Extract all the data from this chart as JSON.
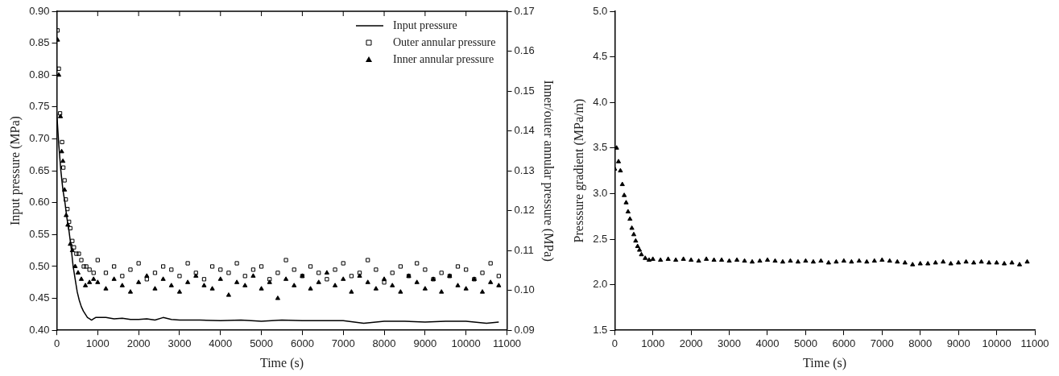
{
  "chart_data": [
    {
      "type": "scatter",
      "xlabel": "Time (s)",
      "ylabel": "Input pressure (MPa)",
      "y2label": "Inner/outer annular pressure (MPa)",
      "xlim": [
        0,
        11000
      ],
      "xticks": [
        0,
        1000,
        2000,
        3000,
        4000,
        5000,
        6000,
        7000,
        8000,
        9000,
        10000,
        11000
      ],
      "ylim": [
        0.4,
        0.9
      ],
      "yticks": [
        {
          "value": 0.4,
          "label": "0.40"
        },
        {
          "value": 0.45,
          "label": "0.45"
        },
        {
          "value": 0.5,
          "label": "0.50"
        },
        {
          "value": 0.55,
          "label": "0.55"
        },
        {
          "value": 0.6,
          "label": "0.60"
        },
        {
          "value": 0.65,
          "label": "0.65"
        },
        {
          "value": 0.7,
          "label": "0.70"
        },
        {
          "value": 0.75,
          "label": "0.75"
        },
        {
          "value": 0.8,
          "label": "0.80"
        },
        {
          "value": 0.85,
          "label": "0.85"
        },
        {
          "value": 0.9,
          "label": "0.90"
        }
      ],
      "y2lim": [
        0.09,
        0.17
      ],
      "y2ticks": [
        {
          "value": 0.09,
          "label": "0.09"
        },
        {
          "value": 0.1,
          "label": "0.10"
        },
        {
          "value": 0.11,
          "label": "0.11"
        },
        {
          "value": 0.12,
          "label": "0.12"
        },
        {
          "value": 0.13,
          "label": "0.13"
        },
        {
          "value": 0.14,
          "label": "0.14"
        },
        {
          "value": 0.15,
          "label": "0.15"
        },
        {
          "value": 0.16,
          "label": "0.16"
        },
        {
          "value": 0.17,
          "label": "0.17"
        }
      ],
      "legend": "top right",
      "grid": false,
      "series": [
        {
          "name": "Input pressure",
          "type": "line",
          "marker": "none",
          "color": "#000000",
          "x": [
            0,
            50,
            100,
            150,
            200,
            250,
            300,
            350,
            400,
            450,
            500,
            550,
            600,
            650,
            700,
            750,
            800,
            850,
            900,
            950,
            1000,
            1200,
            1400,
            1600,
            1800,
            2000,
            2200,
            2400,
            2600,
            2800,
            3000,
            3500,
            4000,
            4500,
            5000,
            5500,
            6000,
            6500,
            7000,
            7500,
            8000,
            8500,
            9000,
            9500,
            10000,
            10500,
            10800
          ],
          "values": [
            0.74,
            0.69,
            0.65,
            0.62,
            0.6,
            0.575,
            0.555,
            0.53,
            0.5,
            0.48,
            0.46,
            0.447,
            0.437,
            0.43,
            0.425,
            0.42,
            0.418,
            0.416,
            0.418,
            0.42,
            0.42,
            0.42,
            0.418,
            0.419,
            0.417,
            0.417,
            0.418,
            0.416,
            0.42,
            0.417,
            0.416,
            0.416,
            0.415,
            0.416,
            0.414,
            0.416,
            0.415,
            0.415,
            0.415,
            0.411,
            0.414,
            0.414,
            0.413,
            0.414,
            0.414,
            0.411,
            0.413
          ]
        },
        {
          "name": "Outer annular pressure",
          "marker": "square",
          "axis": "y2",
          "color": "#000000",
          "x": [
            20,
            50,
            80,
            130,
            160,
            190,
            220,
            260,
            300,
            330,
            380,
            420,
            480,
            540,
            600,
            660,
            720,
            800,
            900,
            1000,
            1200,
            1400,
            1600,
            1800,
            2000,
            2200,
            2400,
            2600,
            2800,
            3000,
            3200,
            3400,
            3600,
            3800,
            4000,
            4200,
            4400,
            4600,
            4800,
            5000,
            5200,
            5400,
            5600,
            5800,
            6000,
            6200,
            6400,
            6600,
            6800,
            7000,
            7200,
            7400,
            7600,
            7800,
            8000,
            8200,
            8400,
            8600,
            8800,
            9000,
            9200,
            9400,
            9600,
            9800,
            10000,
            10200,
            10400,
            10600,
            10800
          ],
          "values": [
            0.1652,
            0.1556,
            0.1444,
            0.1372,
            0.1308,
            0.1276,
            0.1228,
            0.1204,
            0.1172,
            0.1156,
            0.1124,
            0.1108,
            0.1092,
            0.1092,
            0.1076,
            0.106,
            0.106,
            0.1052,
            0.1044,
            0.1076,
            0.1044,
            0.106,
            0.1036,
            0.1052,
            0.1068,
            0.1028,
            0.1044,
            0.106,
            0.1052,
            0.1036,
            0.1068,
            0.1044,
            0.1028,
            0.106,
            0.1052,
            0.1044,
            0.1068,
            0.1036,
            0.1052,
            0.106,
            0.1028,
            0.1044,
            0.1076,
            0.1052,
            0.1036,
            0.106,
            0.1044,
            0.1028,
            0.1052,
            0.1068,
            0.1036,
            0.1044,
            0.1076,
            0.1052,
            0.102,
            0.1044,
            0.106,
            0.1036,
            0.1068,
            0.1052,
            0.1028,
            0.1044,
            0.1036,
            0.106,
            0.1052,
            0.1028,
            0.1044,
            0.1068,
            0.1036
          ]
        },
        {
          "name": "Inner annular pressure",
          "marker": "triangle",
          "axis": "y2",
          "color": "#000000",
          "x": [
            20,
            50,
            90,
            120,
            150,
            190,
            230,
            270,
            330,
            380,
            450,
            520,
            600,
            700,
            800,
            900,
            1000,
            1200,
            1400,
            1600,
            1800,
            2000,
            2200,
            2400,
            2600,
            2800,
            3000,
            3200,
            3400,
            3600,
            3800,
            4000,
            4200,
            4400,
            4600,
            4800,
            5000,
            5200,
            5400,
            5600,
            5800,
            6000,
            6200,
            6400,
            6600,
            6800,
            7000,
            7200,
            7400,
            7600,
            7800,
            8000,
            8200,
            8400,
            8600,
            8800,
            9000,
            9200,
            9400,
            9600,
            9800,
            10000,
            10200,
            10400,
            10600,
            10800
          ],
          "values": [
            0.1628,
            0.154,
            0.1436,
            0.1348,
            0.1324,
            0.1252,
            0.1188,
            0.1164,
            0.1116,
            0.11,
            0.106,
            0.1044,
            0.1028,
            0.1012,
            0.102,
            0.1028,
            0.102,
            0.1004,
            0.1028,
            0.1012,
            0.0996,
            0.102,
            0.1036,
            0.1004,
            0.1028,
            0.1012,
            0.0996,
            0.102,
            0.1036,
            0.1012,
            0.1004,
            0.1028,
            0.0988,
            0.102,
            0.1012,
            0.1036,
            0.1004,
            0.102,
            0.098,
            0.1028,
            0.1012,
            0.1036,
            0.1004,
            0.102,
            0.1044,
            0.1012,
            0.1028,
            0.0996,
            0.1036,
            0.102,
            0.1004,
            0.1028,
            0.1012,
            0.0996,
            0.1036,
            0.102,
            0.1004,
            0.1028,
            0.0996,
            0.1036,
            0.1012,
            0.1004,
            0.1028,
            0.0996,
            0.102,
            0.1012
          ]
        }
      ]
    },
    {
      "type": "scatter",
      "xlabel": "Time (s)",
      "ylabel": "Presssure gradient (MPa/m)",
      "xlim": [
        0,
        11000
      ],
      "xticks": [
        0,
        1000,
        2000,
        3000,
        4000,
        5000,
        6000,
        7000,
        8000,
        9000,
        10000,
        11000
      ],
      "ylim": [
        1.5,
        5.0
      ],
      "yticks": [
        {
          "value": 1.5,
          "label": "1.5"
        },
        {
          "value": 2.0,
          "label": "2.0"
        },
        {
          "value": 2.5,
          "label": "2.5"
        },
        {
          "value": 3.0,
          "label": "3.0"
        },
        {
          "value": 3.5,
          "label": "3.5"
        },
        {
          "value": 4.0,
          "label": "4.0"
        },
        {
          "value": 4.5,
          "label": "4.5"
        },
        {
          "value": 5.0,
          "label": "5.0"
        }
      ],
      "grid": false,
      "marker": "triangle",
      "series": [
        {
          "color": "#000000",
          "x": [
            0,
            50,
            100,
            150,
            200,
            250,
            300,
            350,
            400,
            450,
            500,
            550,
            600,
            650,
            700,
            800,
            900,
            1000,
            1200,
            1400,
            1600,
            1800,
            2000,
            2200,
            2400,
            2600,
            2800,
            3000,
            3200,
            3400,
            3600,
            3800,
            4000,
            4200,
            4400,
            4600,
            4800,
            5000,
            5200,
            5400,
            5600,
            5800,
            6000,
            6200,
            6400,
            6600,
            6800,
            7000,
            7200,
            7400,
            7600,
            7800,
            8000,
            8200,
            8400,
            8600,
            8800,
            9000,
            9200,
            9400,
            9600,
            9800,
            10000,
            10200,
            10400,
            10600,
            10800
          ],
          "values": [
            3.27,
            3.5,
            3.35,
            3.25,
            3.1,
            2.98,
            2.9,
            2.8,
            2.72,
            2.62,
            2.55,
            2.48,
            2.42,
            2.38,
            2.33,
            2.29,
            2.27,
            2.28,
            2.27,
            2.28,
            2.27,
            2.28,
            2.27,
            2.26,
            2.28,
            2.27,
            2.27,
            2.26,
            2.27,
            2.26,
            2.25,
            2.26,
            2.27,
            2.26,
            2.25,
            2.26,
            2.25,
            2.26,
            2.25,
            2.26,
            2.24,
            2.25,
            2.26,
            2.25,
            2.26,
            2.25,
            2.26,
            2.27,
            2.26,
            2.25,
            2.24,
            2.22,
            2.23,
            2.23,
            2.24,
            2.25,
            2.23,
            2.24,
            2.25,
            2.24,
            2.25,
            2.24,
            2.24,
            2.23,
            2.24,
            2.22,
            2.25
          ]
        }
      ]
    }
  ]
}
